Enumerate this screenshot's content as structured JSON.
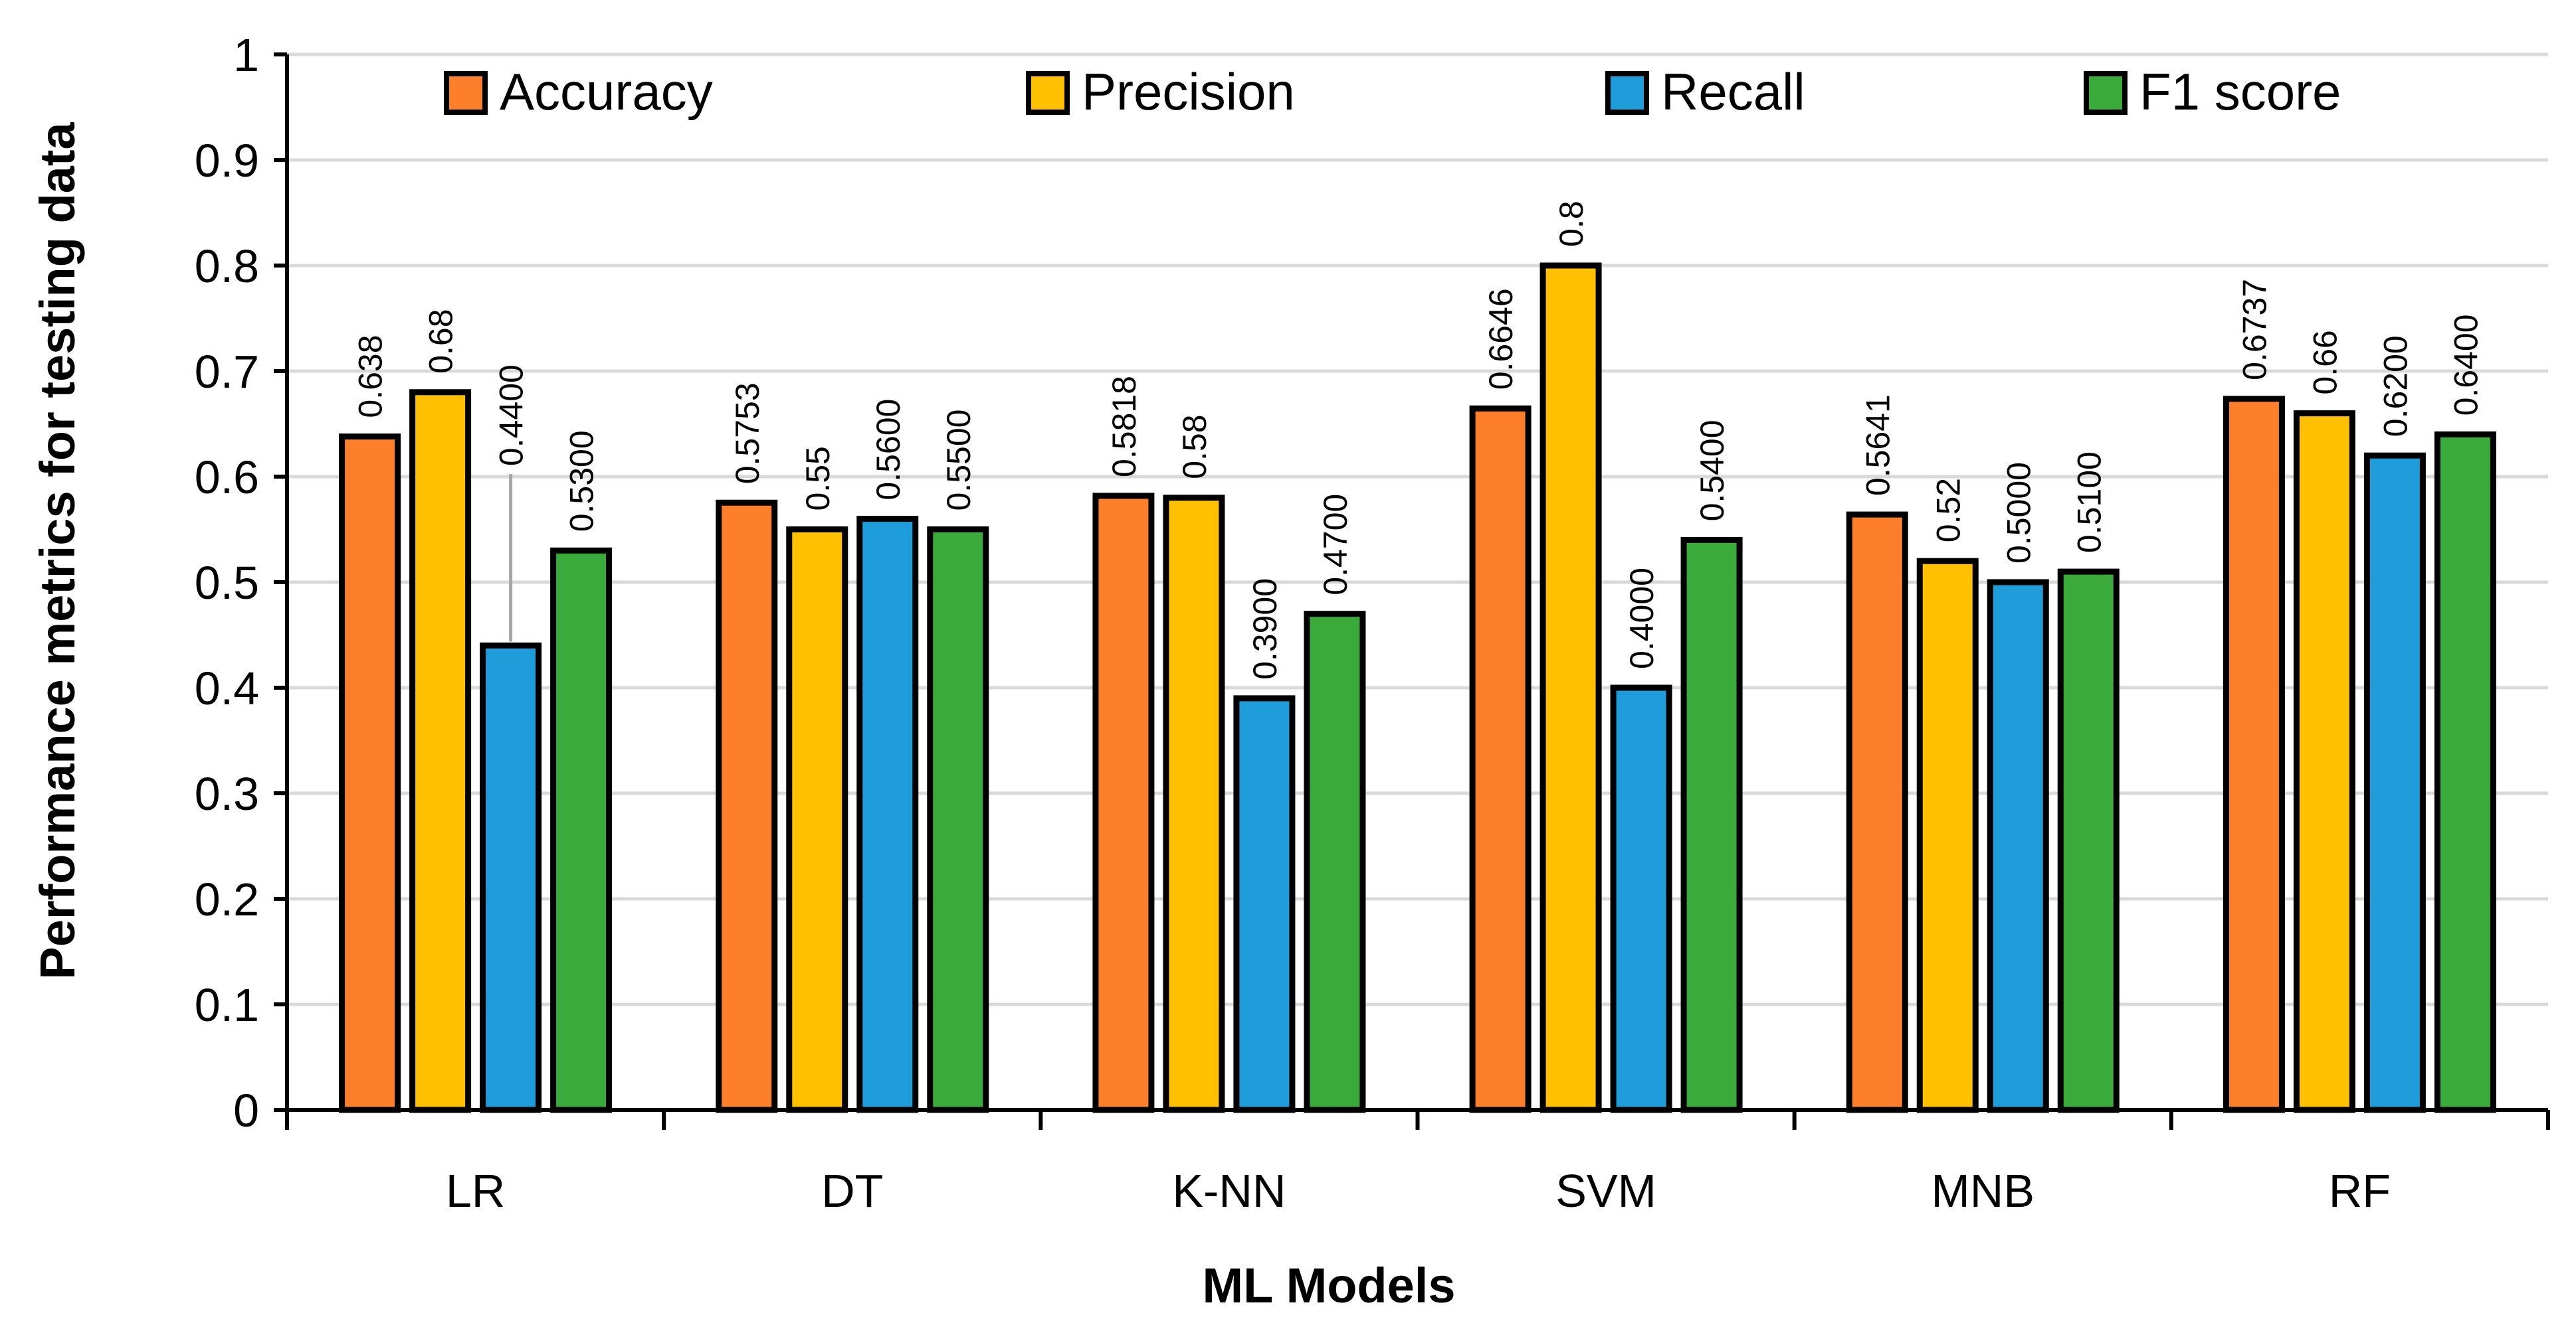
{
  "chart_data": {
    "type": "bar",
    "categories": [
      "LR",
      "DT",
      "K-NN",
      "SVM",
      "MNB",
      "RF"
    ],
    "series": [
      {
        "name": "Accuracy",
        "color": "#fd7f2c",
        "values": [
          0.638,
          0.5753,
          0.5818,
          0.6646,
          0.5641,
          0.6737
        ],
        "labels": [
          "0.638",
          "0.5753",
          "0.5818",
          "0.6646",
          "0.5641",
          "0.6737"
        ]
      },
      {
        "name": "Precision",
        "color": "#ffc000",
        "values": [
          0.68,
          0.55,
          0.58,
          0.8,
          0.52,
          0.66
        ],
        "labels": [
          "0.68",
          "0.55",
          "0.58",
          "0.8",
          "0.52",
          "0.66"
        ]
      },
      {
        "name": "Recall",
        "color": "#1f9cda",
        "values": [
          0.44,
          0.56,
          0.39,
          0.4,
          0.5,
          0.62
        ],
        "labels": [
          "0.4400",
          "0.5600",
          "0.3900",
          "0.4000",
          "0.5000",
          "0.6200"
        ]
      },
      {
        "name": "F1 score",
        "color": "#3aab3a",
        "values": [
          0.53,
          0.55,
          0.47,
          0.54,
          0.51,
          0.64
        ],
        "labels": [
          "0.5300",
          "0.5500",
          "0.4700",
          "0.5400",
          "0.5100",
          "0.6400"
        ]
      }
    ],
    "xlabel": "ML Models",
    "ylabel": "Performance metrics for testing data",
    "ylim": [
      0,
      1
    ],
    "yticks": [
      "0",
      "0.1",
      "0.2",
      "0.3",
      "0.4",
      "0.5",
      "0.6",
      "0.7",
      "0.8",
      "0.9",
      "1"
    ],
    "grid": true,
    "legend_position": "top"
  }
}
